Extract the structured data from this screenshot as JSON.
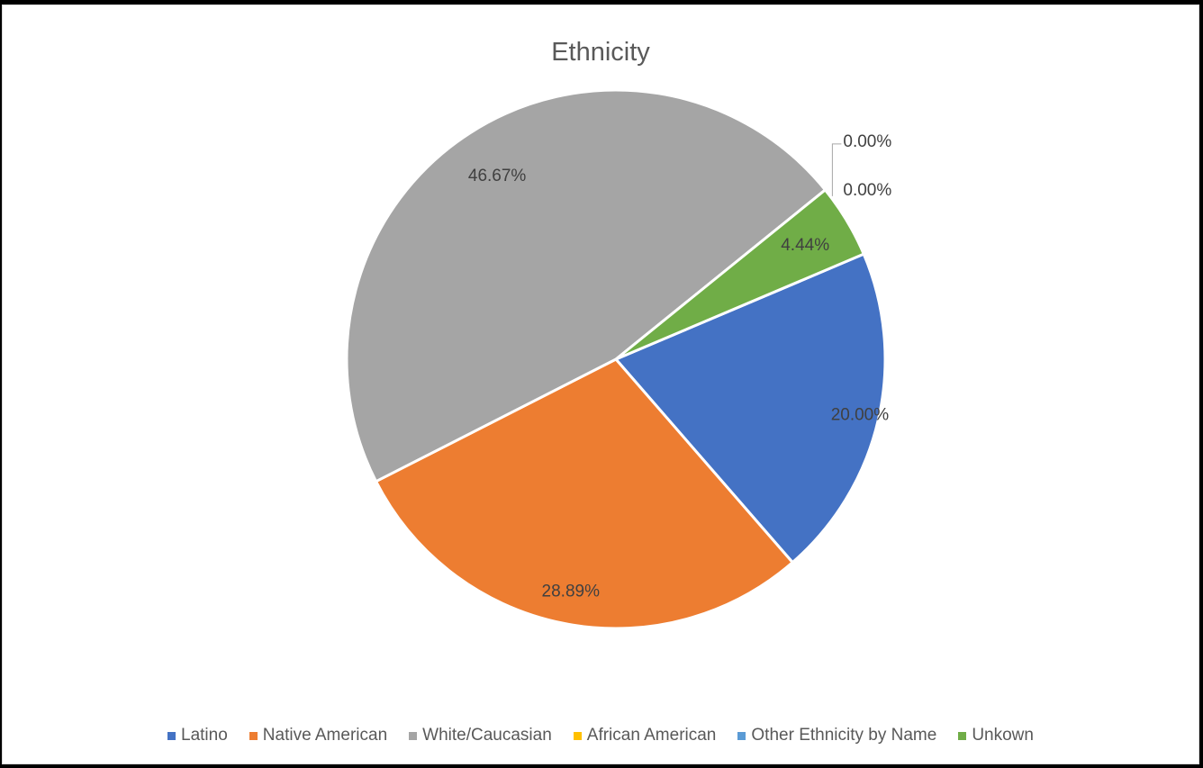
{
  "chart_data": {
    "type": "pie",
    "title": "Ethnicity",
    "categories": [
      "Latino",
      "Native American",
      "White/Caucasian",
      "African American",
      "Other Ethnicity by Name",
      "Unkown"
    ],
    "values": [
      20.0,
      28.89,
      46.67,
      0.0,
      0.0,
      4.44
    ],
    "data_labels": [
      "20.00%",
      "28.89%",
      "46.67%",
      "0.00%",
      "0.00%",
      "4.44%"
    ],
    "colors": [
      "#4472C4",
      "#ED7D31",
      "#A5A5A5",
      "#FFC000",
      "#5B9BD5",
      "#70AD47"
    ],
    "start_angle_deg": 67,
    "legend_position": "bottom"
  }
}
